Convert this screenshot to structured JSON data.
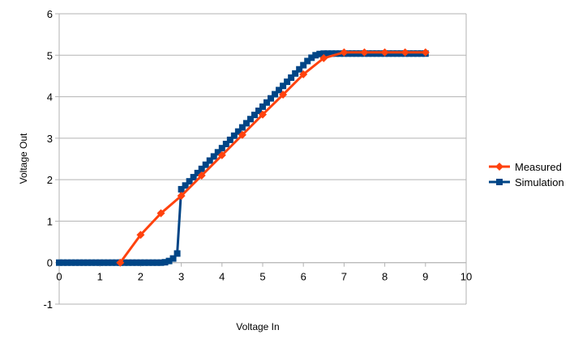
{
  "chart_data": {
    "type": "line",
    "title": "",
    "xlabel": "Voltage In",
    "ylabel": "Voltage Out",
    "xlim": [
      0,
      10
    ],
    "ylim": [
      -1,
      6
    ],
    "x_ticks": [
      0,
      1,
      2,
      3,
      4,
      5,
      6,
      7,
      8,
      9,
      10
    ],
    "y_ticks": [
      -1,
      0,
      1,
      2,
      3,
      4,
      5,
      6
    ],
    "grid": "horizontal",
    "legend_position": "right",
    "series": [
      {
        "name": "Measured",
        "color": "#ff420e",
        "marker": "diamond",
        "points": [
          [
            1.5,
            0
          ],
          [
            2,
            0.67
          ],
          [
            2.5,
            1.19
          ],
          [
            3,
            1.61
          ],
          [
            3.5,
            2.1
          ],
          [
            4,
            2.59
          ],
          [
            4.5,
            3.08
          ],
          [
            5,
            3.57
          ],
          [
            5.5,
            4.05
          ],
          [
            6,
            4.54
          ],
          [
            6.5,
            4.93
          ],
          [
            7,
            5.07
          ],
          [
            7.5,
            5.07
          ],
          [
            8,
            5.07
          ],
          [
            8.5,
            5.07
          ],
          [
            9,
            5.07
          ]
        ]
      },
      {
        "name": "Simulation",
        "color": "#004586",
        "marker": "square",
        "points": [
          [
            0,
            0
          ],
          [
            0.1,
            0
          ],
          [
            0.2,
            0
          ],
          [
            0.3,
            0
          ],
          [
            0.4,
            0
          ],
          [
            0.5,
            0
          ],
          [
            0.6,
            0
          ],
          [
            0.7,
            0
          ],
          [
            0.8,
            0
          ],
          [
            0.9,
            0
          ],
          [
            1,
            0
          ],
          [
            1.1,
            0
          ],
          [
            1.2,
            0
          ],
          [
            1.3,
            0
          ],
          [
            1.4,
            0
          ],
          [
            1.5,
            0
          ],
          [
            1.6,
            0
          ],
          [
            1.7,
            0
          ],
          [
            1.8,
            0
          ],
          [
            1.9,
            0
          ],
          [
            2,
            0
          ],
          [
            2.1,
            0
          ],
          [
            2.2,
            0
          ],
          [
            2.3,
            0
          ],
          [
            2.4,
            0
          ],
          [
            2.5,
            0
          ],
          [
            2.6,
            0.01
          ],
          [
            2.7,
            0.04
          ],
          [
            2.8,
            0.1
          ],
          [
            2.9,
            0.22
          ],
          [
            3,
            1.77
          ],
          [
            3.1,
            1.86
          ],
          [
            3.2,
            1.96
          ],
          [
            3.3,
            2.06
          ],
          [
            3.4,
            2.16
          ],
          [
            3.5,
            2.26
          ],
          [
            3.6,
            2.36
          ],
          [
            3.7,
            2.46
          ],
          [
            3.8,
            2.56
          ],
          [
            3.9,
            2.66
          ],
          [
            4,
            2.76
          ],
          [
            4.1,
            2.86
          ],
          [
            4.2,
            2.96
          ],
          [
            4.3,
            3.06
          ],
          [
            4.4,
            3.16
          ],
          [
            4.5,
            3.26
          ],
          [
            4.6,
            3.36
          ],
          [
            4.7,
            3.46
          ],
          [
            4.8,
            3.56
          ],
          [
            4.9,
            3.66
          ],
          [
            5,
            3.76
          ],
          [
            5.1,
            3.86
          ],
          [
            5.2,
            3.96
          ],
          [
            5.3,
            4.06
          ],
          [
            5.4,
            4.16
          ],
          [
            5.5,
            4.26
          ],
          [
            5.6,
            4.36
          ],
          [
            5.7,
            4.46
          ],
          [
            5.8,
            4.56
          ],
          [
            5.9,
            4.66
          ],
          [
            6,
            4.76
          ],
          [
            6.1,
            4.86
          ],
          [
            6.2,
            4.94
          ],
          [
            6.3,
            5.0
          ],
          [
            6.4,
            5.03
          ],
          [
            6.5,
            5.04
          ],
          [
            6.6,
            5.04
          ],
          [
            6.7,
            5.04
          ],
          [
            6.8,
            5.04
          ],
          [
            6.9,
            5.04
          ],
          [
            7,
            5.04
          ],
          [
            7.1,
            5.04
          ],
          [
            7.2,
            5.04
          ],
          [
            7.3,
            5.04
          ],
          [
            7.4,
            5.04
          ],
          [
            7.5,
            5.04
          ],
          [
            7.6,
            5.04
          ],
          [
            7.7,
            5.04
          ],
          [
            7.8,
            5.04
          ],
          [
            7.9,
            5.04
          ],
          [
            8,
            5.04
          ],
          [
            8.1,
            5.04
          ],
          [
            8.2,
            5.04
          ],
          [
            8.3,
            5.04
          ],
          [
            8.4,
            5.04
          ],
          [
            8.5,
            5.04
          ],
          [
            8.6,
            5.04
          ],
          [
            8.7,
            5.04
          ],
          [
            8.8,
            5.04
          ],
          [
            8.9,
            5.04
          ],
          [
            9,
            5.04
          ]
        ]
      }
    ]
  }
}
